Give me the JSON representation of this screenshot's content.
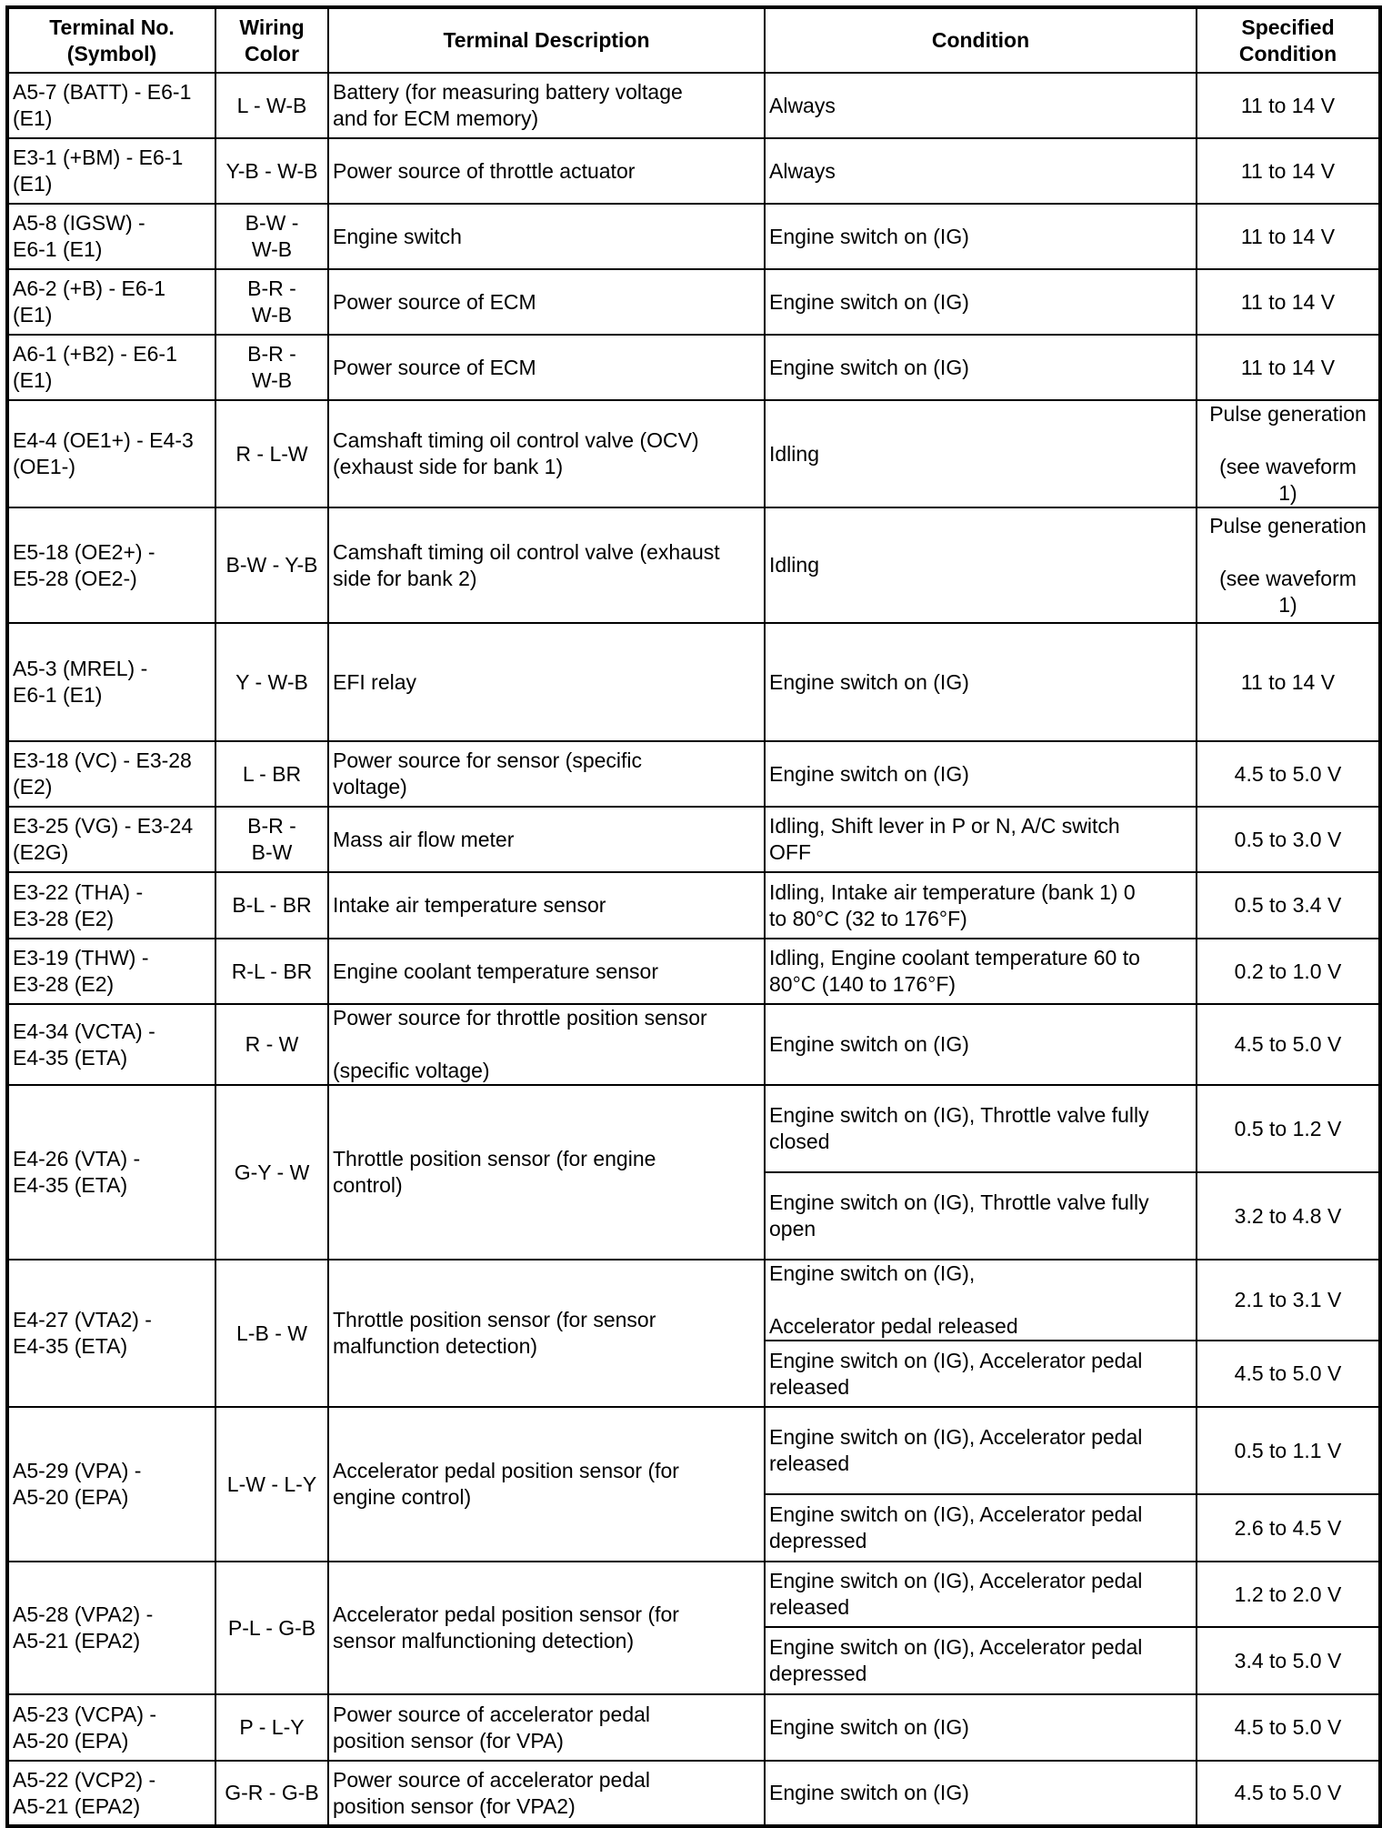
{
  "headers": {
    "terminal": "Terminal No.\n(Symbol)",
    "wiring": "Wiring\nColor",
    "description": "Terminal Description",
    "condition": "Condition",
    "specified": "Specified\nCondition"
  },
  "rows": [
    {
      "terminal": "A5-7 (BATT) - E6-1\n(E1)",
      "wiring": "L - W-B",
      "description": "Battery (for measuring battery voltage\nand for ECM memory)",
      "conditions": [
        {
          "condition": "Always",
          "spec": "11 to 14 V"
        }
      ]
    },
    {
      "terminal": "E3-1 (+BM) - E6-1\n(E1)",
      "wiring": "Y-B - W-B",
      "description": "Power source of throttle actuator",
      "conditions": [
        {
          "condition": "Always",
          "spec": "11 to 14 V"
        }
      ]
    },
    {
      "terminal": "A5-8 (IGSW) -\nE6-1 (E1)",
      "wiring": "B-W -\nW-B",
      "description": "Engine switch",
      "conditions": [
        {
          "condition": "Engine switch on (IG)",
          "spec": "11 to 14 V"
        }
      ]
    },
    {
      "terminal": "A6-2 (+B) - E6-1\n(E1)",
      "wiring": "B-R -\nW-B",
      "description": "Power source of ECM",
      "conditions": [
        {
          "condition": "Engine switch on (IG)",
          "spec": "11 to 14 V"
        }
      ]
    },
    {
      "terminal": "A6-1 (+B2) - E6-1\n(E1)",
      "wiring": "B-R -\nW-B",
      "description": "Power source of ECM",
      "conditions": [
        {
          "condition": "Engine switch on (IG)",
          "spec": "11 to 14 V"
        }
      ]
    },
    {
      "terminal": "E4-4 (OE1+) - E4-3\n(OE1-)",
      "wiring": "R - L-W",
      "description": "Camshaft timing oil control valve (OCV)\n(exhaust side for bank 1)",
      "conditions": [
        {
          "condition": "Idling",
          "spec": "Pulse generation\n\n(see waveform\n1)"
        }
      ]
    },
    {
      "terminal": "E5-18 (OE2+) -\nE5-28 (OE2-)",
      "wiring": "B-W - Y-B",
      "description": "Camshaft timing oil control valve (exhaust\nside for bank 2)",
      "conditions": [
        {
          "condition": "Idling",
          "spec": "Pulse generation\n\n(see waveform\n1)"
        }
      ]
    },
    {
      "terminal": "A5-3 (MREL) -\nE6-1 (E1)",
      "wiring": "Y - W-B",
      "description": "EFI relay",
      "conditions": [
        {
          "condition": "Engine switch on (IG)",
          "spec": "11 to 14 V"
        }
      ]
    },
    {
      "terminal": "E3-18 (VC) - E3-28\n(E2)",
      "wiring": "L - BR",
      "description": "Power source for sensor (specific\nvoltage)",
      "conditions": [
        {
          "condition": "Engine switch on (IG)",
          "spec": "4.5 to 5.0 V"
        }
      ]
    },
    {
      "terminal": "E3-25 (VG) - E3-24\n(E2G)",
      "wiring": "B-R -\nB-W",
      "description": "Mass air flow meter",
      "conditions": [
        {
          "condition": "Idling, Shift lever in P or N, A/C switch\nOFF",
          "spec": "0.5 to 3.0 V"
        }
      ]
    },
    {
      "terminal": "E3-22 (THA) -\nE3-28 (E2)",
      "wiring": "B-L - BR",
      "description": "Intake air temperature sensor",
      "conditions": [
        {
          "condition": "Idling, Intake air temperature (bank 1) 0\nto 80°C (32 to 176°F)",
          "spec": "0.5 to 3.4 V"
        }
      ]
    },
    {
      "terminal": "E3-19 (THW) -\nE3-28 (E2)",
      "wiring": "R-L - BR",
      "description": "Engine coolant temperature sensor",
      "conditions": [
        {
          "condition": "Idling, Engine coolant temperature 60 to\n80°C (140 to 176°F)",
          "spec": "0.2 to 1.0 V"
        }
      ]
    },
    {
      "terminal": "E4-34 (VCTA) -\nE4-35 (ETA)",
      "wiring": "R - W",
      "description": "Power source for throttle position sensor\n\n(specific voltage)",
      "conditions": [
        {
          "condition": "Engine switch on (IG)",
          "spec": "4.5 to 5.0 V"
        }
      ]
    },
    {
      "terminal": "E4-26 (VTA) -\nE4-35 (ETA)",
      "wiring": "G-Y - W",
      "description": "Throttle position sensor (for engine\ncontrol)",
      "conditions": [
        {
          "condition": "Engine switch on (IG), Throttle valve fully\nclosed",
          "spec": "0.5 to 1.2 V"
        },
        {
          "condition": "Engine switch on (IG), Throttle valve fully\nopen",
          "spec": "3.2 to 4.8 V"
        }
      ]
    },
    {
      "terminal": "E4-27 (VTA2) -\nE4-35 (ETA)",
      "wiring": "L-B - W",
      "description": "Throttle position sensor (for sensor\nmalfunction detection)",
      "conditions": [
        {
          "condition": "Engine switch on (IG),\n\nAccelerator pedal released",
          "spec": "2.1 to 3.1 V"
        },
        {
          "condition": "Engine switch on (IG), Accelerator pedal\nreleased",
          "spec": "4.5 to 5.0 V"
        }
      ]
    },
    {
      "terminal": "A5-29 (VPA) -\nA5-20 (EPA)",
      "wiring": "L-W - L-Y",
      "description": "Accelerator pedal position sensor (for\nengine control)",
      "conditions": [
        {
          "condition": "Engine switch on (IG), Accelerator pedal\nreleased",
          "spec": "0.5 to 1.1 V"
        },
        {
          "condition": "Engine switch on (IG), Accelerator pedal\ndepressed",
          "spec": "2.6 to 4.5 V"
        }
      ]
    },
    {
      "terminal": "A5-28 (VPA2) -\nA5-21 (EPA2)",
      "wiring": "P-L - G-B",
      "description": "Accelerator pedal position sensor (for\nsensor malfunctioning detection)",
      "conditions": [
        {
          "condition": "Engine switch on (IG), Accelerator pedal\nreleased",
          "spec": "1.2 to 2.0 V"
        },
        {
          "condition": "Engine switch on (IG), Accelerator pedal\ndepressed",
          "spec": "3.4 to 5.0 V"
        }
      ]
    },
    {
      "terminal": "A5-23 (VCPA) -\nA5-20 (EPA)",
      "wiring": "P - L-Y",
      "description": "Power source of accelerator pedal\nposition sensor (for VPA)",
      "conditions": [
        {
          "condition": "Engine switch on (IG)",
          "spec": "4.5 to 5.0 V"
        }
      ]
    },
    {
      "terminal": "A5-22 (VCP2) -\nA5-21 (EPA2)",
      "wiring": "G-R - G-B",
      "description": "Power source of accelerator pedal\nposition sensor (for VPA2)",
      "conditions": [
        {
          "condition": "Engine switch on (IG)",
          "spec": "4.5 to 5.0 V"
        }
      ]
    }
  ]
}
